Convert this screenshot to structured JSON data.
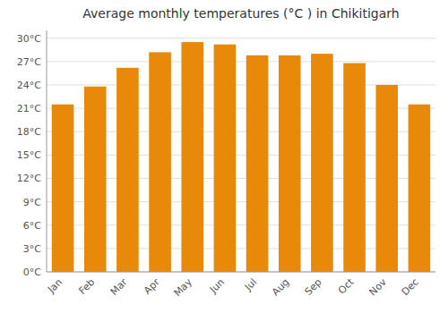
{
  "chart_data": {
    "type": "bar",
    "title": "Average monthly temperatures (°C ) in Chikitigarh",
    "categories": [
      "Jan",
      "Feb",
      "Mar",
      "Apr",
      "May",
      "Jun",
      "Jul",
      "Aug",
      "Sep",
      "Oct",
      "Nov",
      "Dec"
    ],
    "values": [
      21.5,
      23.8,
      26.2,
      28.2,
      29.5,
      29.2,
      27.8,
      27.8,
      28.0,
      26.8,
      24.0,
      21.5
    ],
    "color": "#E8890A",
    "ylim": [
      0,
      31
    ],
    "yticks": [
      {
        "value": 0,
        "label": "0°C"
      },
      {
        "value": 3,
        "label": "3°C"
      },
      {
        "value": 6,
        "label": "6°C"
      },
      {
        "value": 9,
        "label": "9°C"
      },
      {
        "value": 12,
        "label": "12°C"
      },
      {
        "value": 15,
        "label": "15°C"
      },
      {
        "value": 18,
        "label": "18°C"
      },
      {
        "value": 21,
        "label": "21°C"
      },
      {
        "value": 24,
        "label": "24°C"
      },
      {
        "value": 27,
        "label": "27°C"
      },
      {
        "value": 30,
        "label": "30°C"
      }
    ],
    "grid": true
  }
}
